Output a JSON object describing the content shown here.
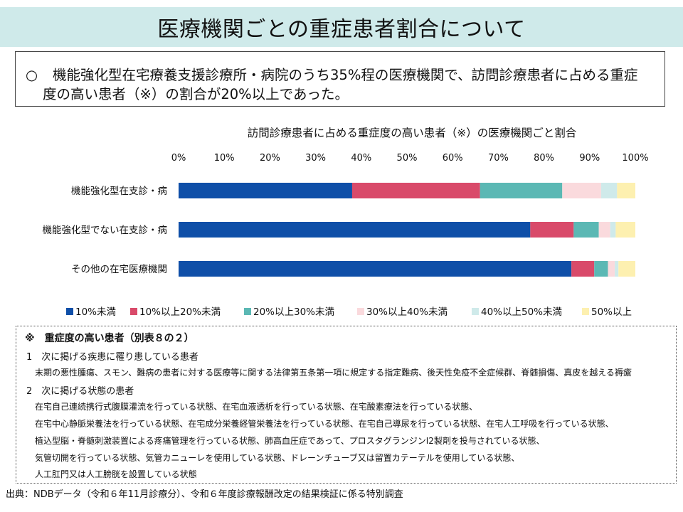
{
  "page": {
    "title": "医療機関ごとの重症患者割合について",
    "summary": {
      "bullet": "○",
      "line1": "機能強化型在宅療養支援診療所・病院のうち35%程の医療機関で、訪問診療患者に占める重症",
      "line2": "度の高い患者（※）の割合が20%以上であった。"
    },
    "note": {
      "heading": "※　重症度の高い患者（別表８の２）",
      "section1": "1　次に掲げる疾患に罹り患している患者",
      "section1_items": [
        "末期の悪性腫瘍、スモン、難病の患者に対する医療等に関する法律第五条第一項に規定する指定難病、後天性免疫不全症候群、脊髄損傷、真皮を越える褥瘡"
      ],
      "section2": "2　次に掲げる状態の患者",
      "section2_items": [
        "在宅自己連続携行式腹膜灌流を行っている状態、在宅血液透析を行っている状態、在宅酸素療法を行っている状態、",
        "在宅中心静脈栄養法を行っている状態、在宅成分栄養経管栄養法を行っている状態、在宅自己導尿を行っている状態、在宅人工呼吸を行っている状態、",
        "植込型脳・脊髄刺激装置による疼痛管理を行っている状態、肺高血圧症であって、プロスタグランジンI2製剤を投与されている状態、",
        "気管切開を行っている状態、気管カニューレを使用している状態、ドレーンチューブ又は留置カテーテルを使用している状態、",
        "人工肛門又は人工膀胱を設置している状態"
      ]
    },
    "source": "出典：NDBデータ（令和６年11月診療分）、令和６年度診療報酬改定の結果検証に係る特別調査"
  },
  "chart_data": {
    "type": "bar",
    "orientation": "horizontal",
    "stacked": true,
    "title": "訪問診療患者に占める重症度の高い患者（※）の医療機関ごと割合",
    "categories": [
      "機能強化型在支診・病",
      "機能強化型でない在支診・病",
      "その他の在宅医療機関"
    ],
    "series": [
      {
        "name": "10%未満",
        "color": "#0f4fa8",
        "values": [
          38,
          77,
          86
        ]
      },
      {
        "name": "10%以上20%未満",
        "color": "#d94a6a",
        "values": [
          28,
          9.5,
          5
        ]
      },
      {
        "name": "20%以上30%未満",
        "color": "#5bb8b4",
        "values": [
          18,
          5.5,
          3
        ]
      },
      {
        "name": "30%以上40%未満",
        "color": "#fadadd",
        "values": [
          8.5,
          2.5,
          1.5
        ]
      },
      {
        "name": "40%以上50%未満",
        "color": "#cfeaea",
        "values": [
          3.5,
          1.2,
          0.8
        ]
      },
      {
        "name": "50%以上",
        "color": "#fdf0b0",
        "values": [
          4,
          4.3,
          3.7
        ]
      }
    ],
    "xlim": [
      0,
      100
    ],
    "xticks": [
      "0%",
      "10%",
      "20%",
      "30%",
      "40%",
      "50%",
      "60%",
      "70%",
      "80%",
      "90%",
      "100%"
    ],
    "legend_position": "bottom",
    "grid": false
  }
}
